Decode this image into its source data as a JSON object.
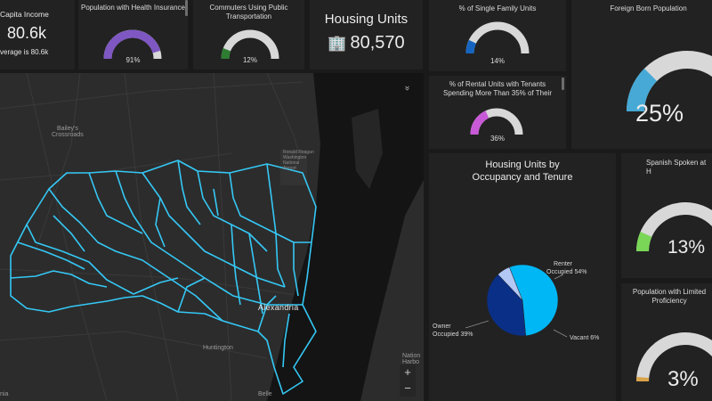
{
  "kpis": {
    "per_capita": {
      "title": "Capita Income",
      "value": "80.6k",
      "subtitle": "verage is 80.6k"
    },
    "health": {
      "title": "Population with Health Insurance",
      "pct": "91%",
      "value": 91,
      "color": "#7e57c2"
    },
    "commuters": {
      "title": "Commuters Using Public Transportation",
      "pct": "12%",
      "value": 12,
      "color": "#2e7d32"
    },
    "housing": {
      "title": "Housing Units",
      "value": "80,570",
      "icon": "building-icon"
    },
    "single_family": {
      "title": "% of Single Family Units",
      "pct": "14%",
      "value": 14,
      "color": "#1565c0"
    },
    "rental": {
      "title": "% of Rental Units with Tenants Spending More Than 35% of Their",
      "pct": "36%",
      "value": 36,
      "color": "#c85ad8"
    },
    "foreign_born": {
      "title": "Foreign Born Population",
      "pct": "25%",
      "value": 25,
      "color": "#46a9d6"
    },
    "spanish": {
      "title": "Spanish Spoken at H",
      "pct": "13%",
      "value": 13,
      "color": "#7ad657"
    },
    "limited_english": {
      "title": "Population with Limited Proficiency",
      "pct": "3%",
      "value": 3,
      "color": "#d9a34a"
    }
  },
  "pie": {
    "title_line1": "Housing Units by",
    "title_line2": "Occupancy and Tenure",
    "label_renter_1": "Renter",
    "label_renter_2": "Occupied 54%",
    "label_owner_1": "Owner",
    "label_owner_2": "Occupied 39%",
    "label_vacant": "Vacant 6%"
  },
  "chart_data": {
    "type": "pie",
    "title": "Housing Units by Occupancy and Tenure",
    "categories": [
      "Renter Occupied",
      "Owner Occupied",
      "Vacant"
    ],
    "values": [
      54,
      39,
      6
    ],
    "colors": [
      "#00b7f5",
      "#0a2f86",
      "#b4c8f6"
    ]
  },
  "map": {
    "labels": {
      "baileys_1": "Bailey's",
      "baileys_2": "Crossroads",
      "alexandria": "Alexandria",
      "huntington": "Huntington",
      "belle": "Belle",
      "bottom_left": "nia",
      "ronald_1": "Ronald Reagan",
      "ronald_2": "Washington",
      "ronald_3": "National",
      "ronald_4": "Airport",
      "national_1": "Nation",
      "national_2": "Harbo"
    },
    "controls": {
      "zoom_in": "+",
      "zoom_out": "−",
      "collapse": "»"
    },
    "outline_color": "#35c8f5"
  }
}
